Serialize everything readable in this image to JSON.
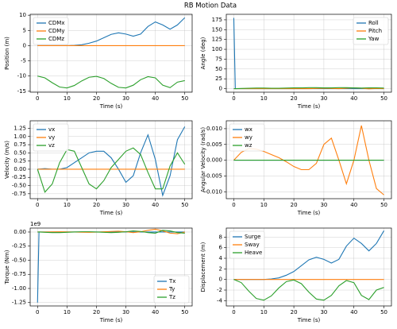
{
  "title": "RB Motion Data",
  "chart_data": [
    {
      "type": "line",
      "xlabel": "Time (s)",
      "ylabel": "Position (m)",
      "x": [
        0,
        2.5,
        5,
        7.5,
        10,
        12.5,
        15,
        17.5,
        20,
        22.5,
        25,
        27.5,
        30,
        32.5,
        35,
        37.5,
        40,
        42.5,
        45,
        47.5,
        50
      ],
      "series": [
        {
          "name": "CDMx",
          "color": "#1f77b4",
          "values": [
            0,
            0,
            0,
            0,
            0,
            0.1,
            0.3,
            0.8,
            1.5,
            2.6,
            3.7,
            4.2,
            3.8,
            3.1,
            3.8,
            6.3,
            7.8,
            6.8,
            5.4,
            6.8,
            9.2
          ]
        },
        {
          "name": "CDMy",
          "color": "#ff7f0e",
          "values": [
            0,
            0,
            0,
            0,
            0,
            0,
            0,
            0,
            0,
            0,
            0,
            0,
            0,
            0,
            0,
            0,
            0,
            0,
            0,
            0,
            0
          ]
        },
        {
          "name": "CDMz",
          "color": "#2ca02c",
          "values": [
            -10,
            -10.6,
            -12.2,
            -13.6,
            -13.9,
            -13.1,
            -11.6,
            -10.4,
            -10.1,
            -10.8,
            -12.4,
            -13.7,
            -13.9,
            -13,
            -11.2,
            -10.2,
            -10.6,
            -13,
            -13.8,
            -12,
            -11.5
          ]
        }
      ],
      "xlim": [
        -2.5,
        52.5
      ],
      "ylim": [
        -15.3,
        10.3
      ],
      "xticks": [
        0,
        10,
        20,
        30,
        40,
        50
      ],
      "yticks": [
        -15,
        -10,
        -5,
        0,
        5,
        10
      ],
      "grid": true,
      "legend": "upper left"
    },
    {
      "type": "line",
      "xlabel": "Time (s)",
      "ylabel": "Angle (deg)",
      "x": [
        0,
        0.5,
        2.5,
        5,
        7.5,
        10,
        12.5,
        15,
        17.5,
        20,
        22.5,
        25,
        27.5,
        30,
        32.5,
        35,
        37.5,
        40,
        42.5,
        45,
        47.5,
        50
      ],
      "series": [
        {
          "name": "Roll",
          "color": "#1f77b4",
          "values": [
            180,
            0,
            0,
            0,
            0,
            0,
            0,
            0,
            0,
            0,
            0,
            0,
            0,
            0,
            0,
            0,
            0,
            0,
            0,
            0,
            0,
            0
          ]
        },
        {
          "name": "Pitch",
          "color": "#ff7f0e",
          "values": [
            0,
            0,
            0,
            0,
            0,
            0,
            0,
            0,
            0,
            0,
            0,
            0,
            0.5,
            1,
            0.5,
            0,
            1,
            2,
            1,
            -0.5,
            0.5,
            0
          ]
        },
        {
          "name": "Yaw",
          "color": "#2ca02c",
          "values": [
            0,
            0,
            0.5,
            1,
            1.5,
            1.5,
            1,
            1,
            1.5,
            2,
            2,
            2.5,
            2.5,
            2,
            2,
            2.5,
            2.5,
            2,
            1.5,
            2,
            2,
            1.5
          ]
        }
      ],
      "xlim": [
        -2.5,
        52.5
      ],
      "ylim": [
        -9,
        189
      ],
      "xticks": [
        0,
        10,
        20,
        30,
        40,
        50
      ],
      "yticks": [
        0,
        25,
        50,
        75,
        100,
        125,
        150,
        175
      ],
      "grid": true,
      "legend": "upper right"
    },
    {
      "type": "line",
      "xlabel": "Time (s)",
      "ylabel": "Velocity (m/s)",
      "x": [
        0,
        2.5,
        5,
        7.5,
        10,
        12.5,
        15,
        17.5,
        20,
        22.5,
        25,
        27.5,
        30,
        32.5,
        35,
        37.5,
        40,
        42.5,
        45,
        47.5,
        50
      ],
      "series": [
        {
          "name": "vx",
          "color": "#1f77b4",
          "values": [
            0,
            0.02,
            0,
            0,
            0.05,
            0.2,
            0.35,
            0.5,
            0.55,
            0.55,
            0.35,
            0,
            -0.4,
            -0.2,
            0.5,
            1.05,
            0.3,
            -0.8,
            -0.2,
            0.9,
            1.3
          ]
        },
        {
          "name": "vy",
          "color": "#ff7f0e",
          "values": [
            0,
            0,
            0,
            0,
            0,
            0,
            0,
            0,
            0,
            0,
            0,
            0,
            0,
            0,
            0,
            0,
            0,
            0,
            0,
            0,
            0
          ]
        },
        {
          "name": "vz",
          "color": "#2ca02c",
          "values": [
            0,
            -0.7,
            -0.45,
            0.2,
            0.6,
            0.55,
            0.05,
            -0.45,
            -0.6,
            -0.35,
            0.05,
            0.3,
            0.55,
            0.65,
            0.45,
            -0.1,
            -0.6,
            -0.6,
            0.1,
            0.5,
            0.15
          ]
        }
      ],
      "xlim": [
        -2.5,
        52.5
      ],
      "ylim": [
        -0.9,
        1.48
      ],
      "xticks": [
        0,
        10,
        20,
        30,
        40,
        50
      ],
      "yticks": [
        -0.75,
        {
          "value": -0.5,
          "label": "-0.50"
        },
        -0.25,
        {
          "value": 0,
          "label": "0.00"
        },
        0.25,
        {
          "value": 0.5,
          "label": "0.50"
        },
        0.75,
        {
          "value": 1,
          "label": "1.00"
        },
        1.25
      ],
      "grid": true,
      "legend": "upper left"
    },
    {
      "type": "line",
      "xlabel": "Time (s)",
      "ylabel": "Angular Velocity (rad/s)",
      "x": [
        0,
        2.5,
        5,
        7.5,
        10,
        12.5,
        15,
        17.5,
        20,
        22.5,
        25,
        27.5,
        30,
        32.5,
        35,
        37.5,
        40,
        42.5,
        45,
        47.5,
        50
      ],
      "series": [
        {
          "name": "wx",
          "color": "#1f77b4",
          "values": [
            0,
            0,
            0,
            0,
            0,
            0,
            0,
            0,
            0,
            0,
            0,
            0,
            0,
            0,
            0,
            0,
            0,
            0,
            0,
            0,
            0
          ]
        },
        {
          "name": "wy",
          "color": "#ff7f0e",
          "values": [
            0,
            0.0025,
            0.0037,
            0.0035,
            0.0028,
            0.0018,
            0.0008,
            -0.0005,
            -0.002,
            -0.003,
            -0.003,
            -0.001,
            0.005,
            0.007,
            0,
            -0.0075,
            0,
            0.011,
            0,
            -0.009,
            -0.011
          ]
        },
        {
          "name": "wz",
          "color": "#2ca02c",
          "values": [
            0,
            0,
            0,
            0,
            0,
            0,
            0,
            0,
            0,
            0,
            0,
            0,
            0,
            0,
            0,
            0,
            0,
            0,
            0,
            0,
            0
          ]
        }
      ],
      "xlim": [
        -2.5,
        52.5
      ],
      "ylim": [
        -0.0122,
        0.0125
      ],
      "xticks": [
        0,
        10,
        20,
        30,
        40,
        50
      ],
      "yticks": [
        {
          "value": -0.01,
          "label": "-0.010"
        },
        -0.005,
        {
          "value": 0,
          "label": "0.000"
        },
        0.005,
        {
          "value": 0.01,
          "label": "0.010"
        }
      ],
      "grid": true,
      "legend": "upper left"
    },
    {
      "type": "line",
      "xlabel": "Time (s)",
      "ylabel": "Torque (Nm)",
      "offset_text": "1e9",
      "x": [
        0,
        0.5,
        2.5,
        5,
        7.5,
        10,
        12.5,
        15,
        17.5,
        20,
        22.5,
        25,
        27.5,
        30,
        32.5,
        35,
        37.5,
        40,
        42.5,
        45,
        47.5,
        50
      ],
      "series": [
        {
          "name": "Tx",
          "color": "#1f77b4",
          "values": [
            -1.25,
            0,
            0,
            0,
            0,
            0,
            0,
            0,
            0,
            0,
            0,
            0,
            0,
            0,
            0,
            0,
            0,
            0,
            0,
            0,
            0,
            0
          ]
        },
        {
          "name": "Ty",
          "color": "#ff7f0e",
          "values": [
            0,
            0,
            0,
            0.003,
            0.005,
            0.003,
            0,
            -0.003,
            -0.005,
            -0.002,
            0.005,
            0.01,
            0.015,
            0.005,
            -0.01,
            0.005,
            0.03,
            0.05,
            0.02,
            -0.02,
            -0.03,
            0
          ]
        },
        {
          "name": "Tz",
          "color": "#2ca02c",
          "values": [
            0,
            0,
            -0.005,
            -0.01,
            -0.01,
            -0.005,
            0,
            0.005,
            0.005,
            0,
            -0.005,
            -0.01,
            -0.005,
            0.005,
            0.02,
            0.01,
            -0.01,
            -0.02,
            0.03,
            0.02,
            -0.01,
            -0.02
          ]
        }
      ],
      "xlim": [
        -2.5,
        52.5
      ],
      "ylim": [
        -1.31,
        0.07
      ],
      "xticks": [
        0,
        10,
        20,
        30,
        40,
        50
      ],
      "yticks": [
        {
          "value": 0,
          "label": "0.00"
        },
        -0.25,
        {
          "value": -0.5,
          "label": "-0.50"
        },
        -0.75,
        {
          "value": -1,
          "label": "-1.00"
        },
        -1.25
      ],
      "grid": true,
      "legend": "lower right"
    },
    {
      "type": "line",
      "xlabel": "Time (s)",
      "ylabel": "Displacement (m)",
      "x": [
        0,
        2.5,
        5,
        7.5,
        10,
        12.5,
        15,
        17.5,
        20,
        22.5,
        25,
        27.5,
        30,
        32.5,
        35,
        37.5,
        40,
        42.5,
        45,
        47.5,
        50
      ],
      "series": [
        {
          "name": "Surge",
          "color": "#1f77b4",
          "values": [
            0,
            0,
            0,
            0,
            0,
            0.1,
            0.3,
            0.8,
            1.5,
            2.6,
            3.7,
            4.2,
            3.8,
            3.1,
            3.8,
            6.3,
            7.8,
            6.8,
            5.4,
            6.8,
            9.2
          ]
        },
        {
          "name": "Sway",
          "color": "#ff7f0e",
          "values": [
            0,
            0,
            0,
            0,
            0,
            0,
            0,
            0,
            0,
            0,
            0,
            0,
            0,
            0,
            0,
            0,
            0,
            0,
            0,
            0,
            0
          ]
        },
        {
          "name": "Heave",
          "color": "#2ca02c",
          "values": [
            0,
            -0.6,
            -2.2,
            -3.6,
            -3.9,
            -3.1,
            -1.6,
            -0.4,
            -0.1,
            -0.8,
            -2.4,
            -3.7,
            -3.9,
            -3,
            -1.2,
            -0.2,
            -0.6,
            -3,
            -3.8,
            -2,
            -1.5
          ]
        }
      ],
      "xlim": [
        -2.5,
        52.5
      ],
      "ylim": [
        -5,
        9.7
      ],
      "xticks": [
        0,
        10,
        20,
        30,
        40,
        50
      ],
      "yticks": [
        -4,
        -2,
        0,
        2,
        4,
        6,
        8
      ],
      "grid": true,
      "legend": "upper left"
    }
  ]
}
